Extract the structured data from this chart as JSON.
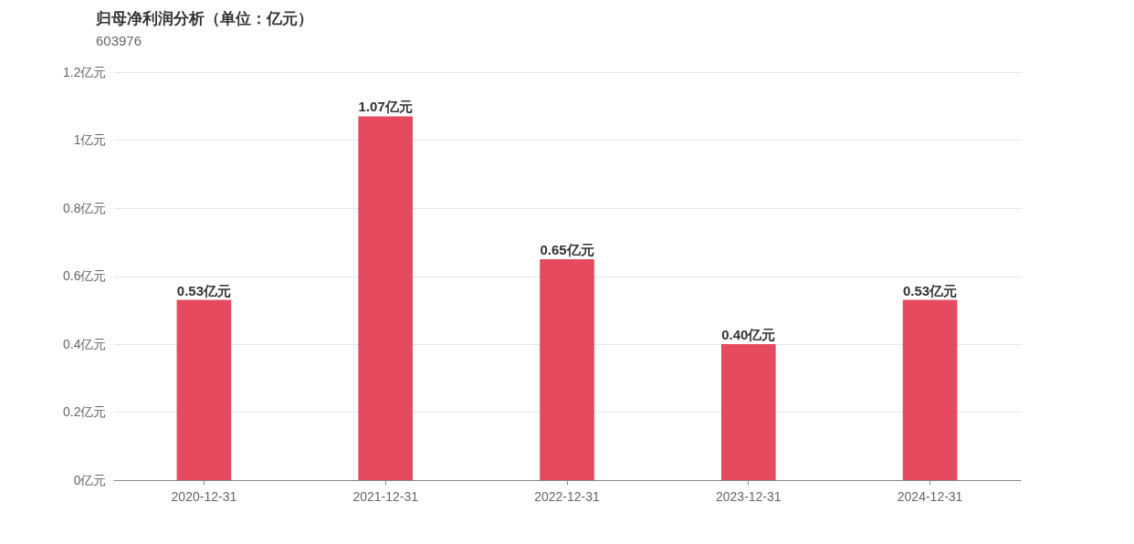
{
  "chart_data": {
    "type": "bar",
    "title": "归母净利润分析（单位：亿元）",
    "subtitle": "603976",
    "categories": [
      "2020-12-31",
      "2021-12-31",
      "2022-12-31",
      "2023-12-31",
      "2024-12-31"
    ],
    "series": [
      {
        "color": "#e54a5f",
        "values": [
          0.53,
          1.07,
          0.65,
          0.4,
          0.53
        ],
        "value_labels": [
          "0.53亿元",
          "1.07亿元",
          "0.65亿元",
          "0.40亿元",
          "0.53亿元"
        ]
      }
    ],
    "ylim": [
      0,
      1.2
    ],
    "yticks": [
      {
        "value": 0,
        "label": "0亿元"
      },
      {
        "value": 0.2,
        "label": "0.2亿元"
      },
      {
        "value": 0.4,
        "label": "0.4亿元"
      },
      {
        "value": 0.6,
        "label": "0.6亿元"
      },
      {
        "value": 0.8,
        "label": "0.8亿元"
      },
      {
        "value": 1,
        "label": "1亿元"
      },
      {
        "value": 1.2,
        "label": "1.2亿元"
      }
    ],
    "grid": "y"
  }
}
